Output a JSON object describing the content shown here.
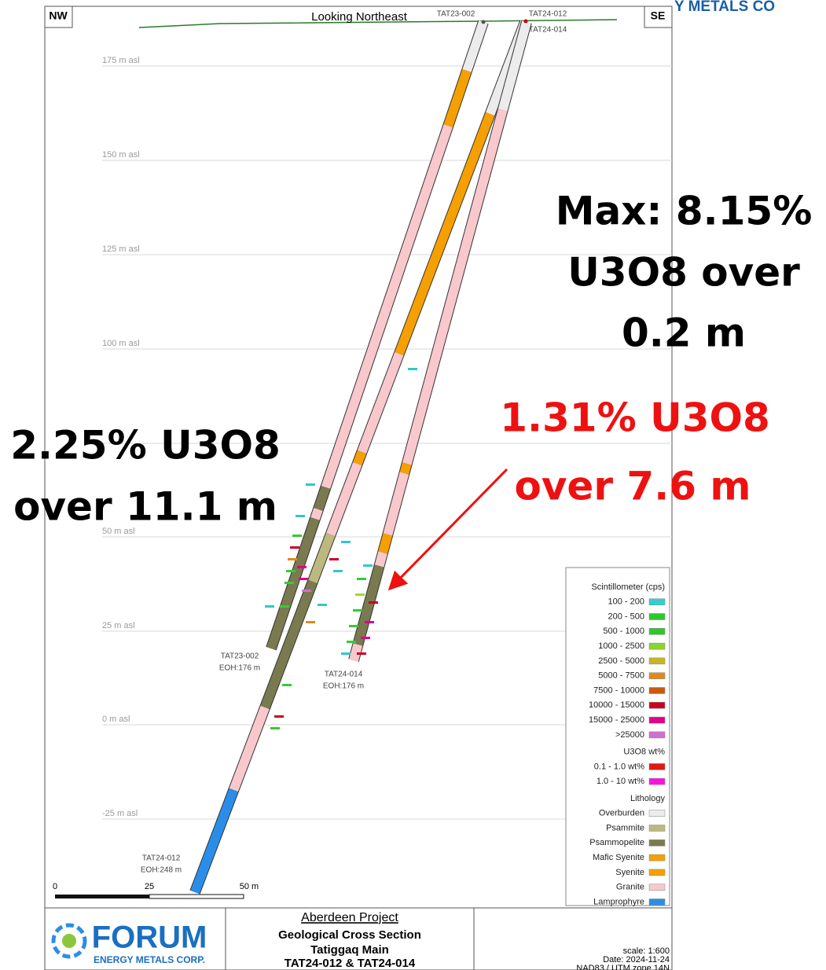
{
  "header": {
    "left_corner": "NW",
    "right_corner": "SE",
    "view": "Looking Northeast",
    "cropped_logo_text": "Y METALS CO"
  },
  "collar_labels": [
    "TAT23-002",
    "TAT24-012",
    "TAT24-014"
  ],
  "elevations": [
    "175  m asl",
    "150  m asl",
    "125  m asl",
    "100  m asl",
    "50  m asl",
    "25  m asl",
    "0  m asl",
    "-25  m asl"
  ],
  "annotations": {
    "max": [
      "Max: 8.15%",
      "U3O8 over",
      "0.2 m"
    ],
    "red": [
      "1.31% U3O8",
      "over 7.6 m"
    ],
    "left": [
      "2.25% U3O8",
      "over 11.1 m"
    ]
  },
  "holes": [
    {
      "label": "TAT23-002",
      "eoh": "EOH:176  m"
    },
    {
      "label": "TAT24-014",
      "eoh": "EOH:176  m"
    },
    {
      "label": "TAT24-012",
      "eoh": "EOH:248  m"
    }
  ],
  "scale_bar": [
    "0",
    "25",
    "50 m"
  ],
  "legend": {
    "scintillometer": {
      "title": "Scintillometer (cps)",
      "items": [
        "100 - 200",
        "200 - 500",
        "500 - 1000",
        "1000 - 2500",
        "2500 - 5000",
        "5000 - 7500",
        "7500 - 10000",
        "10000 - 15000",
        "15000 - 25000",
        ">25000"
      ]
    },
    "u3o8": {
      "title": "U3O8 wt%",
      "items": [
        "0.1 - 1.0 wt%",
        "1.0 - 10 wt%"
      ]
    },
    "lithology": {
      "title": "Lithology",
      "items": [
        "Overburden",
        "Psammite",
        "Psammopelite",
        "Mafic Syenite",
        "Syenite",
        "Granite",
        "Lamprophyre"
      ]
    }
  },
  "title_block": {
    "logo": "FORUM",
    "logo_sub": "ENERGY METALS CORP.",
    "project": "Aberdeen Project",
    "lines": [
      "Geological Cross Section",
      "Tatiggaq Main",
      "TAT24-012 & TAT24-014"
    ],
    "meta": [
      "scale: 1:600",
      "Date: 2024-11-24",
      "NAD83 / UTM zone 14N"
    ]
  }
}
